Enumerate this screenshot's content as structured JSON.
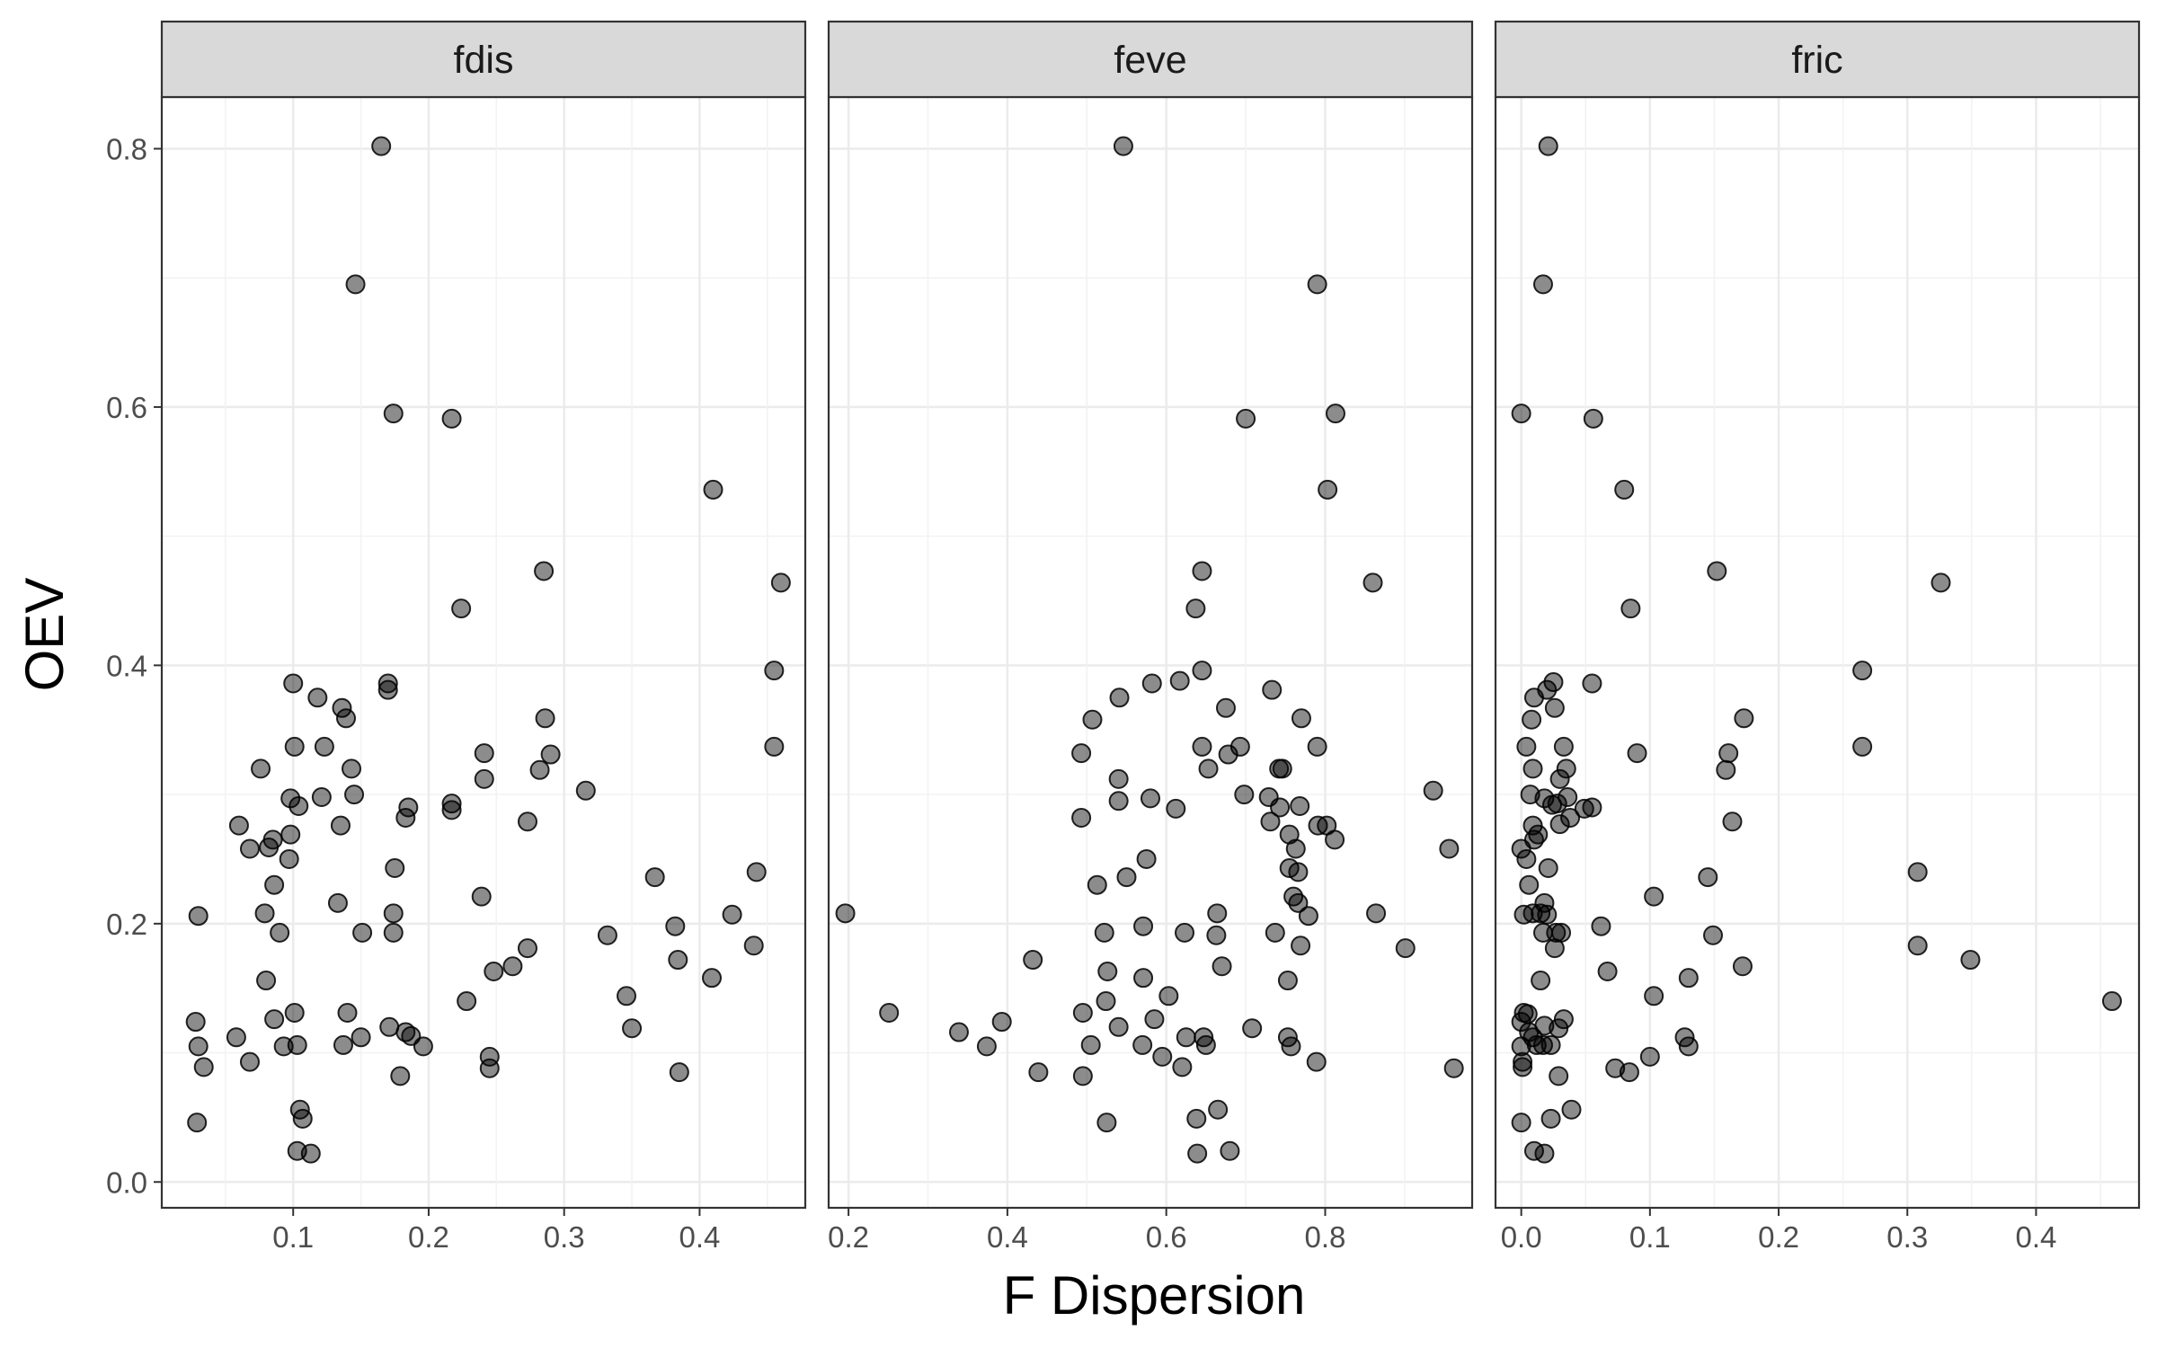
{
  "chart_data": {
    "type": "scatter",
    "xlabel": "F Dispersion",
    "ylabel": "OEV",
    "ylim": [
      -0.02,
      0.84
    ],
    "y_ticks": [
      0.0,
      0.2,
      0.4,
      0.6,
      0.8
    ],
    "y_tick_labels": [
      "0.0",
      "0.2",
      "0.4",
      "0.6",
      "0.8"
    ],
    "point_color": "#000000",
    "point_opacity": 0.45,
    "strip_fill": "#d9d9d9",
    "grid": true,
    "facets": [
      {
        "label": "fdis",
        "xlim": [
          0.003,
          0.478
        ],
        "x_ticks": [
          0.1,
          0.2,
          0.3,
          0.4
        ],
        "x_tick_labels": [
          "0.1",
          "0.2",
          "0.3",
          "0.4"
        ],
        "points": [
          [
            0.165,
            0.802
          ],
          [
            0.146,
            0.695
          ],
          [
            0.174,
            0.595
          ],
          [
            0.217,
            0.591
          ],
          [
            0.41,
            0.536
          ],
          [
            0.285,
            0.473
          ],
          [
            0.46,
            0.464
          ],
          [
            0.224,
            0.444
          ],
          [
            0.455,
            0.396
          ],
          [
            0.1,
            0.386
          ],
          [
            0.17,
            0.386
          ],
          [
            0.17,
            0.381
          ],
          [
            0.118,
            0.375
          ],
          [
            0.136,
            0.367
          ],
          [
            0.139,
            0.359
          ],
          [
            0.286,
            0.359
          ],
          [
            0.101,
            0.337
          ],
          [
            0.123,
            0.337
          ],
          [
            0.455,
            0.337
          ],
          [
            0.241,
            0.332
          ],
          [
            0.29,
            0.331
          ],
          [
            0.143,
            0.32
          ],
          [
            0.076,
            0.32
          ],
          [
            0.282,
            0.319
          ],
          [
            0.241,
            0.312
          ],
          [
            0.316,
            0.303
          ],
          [
            0.145,
            0.3
          ],
          [
            0.098,
            0.297
          ],
          [
            0.121,
            0.298
          ],
          [
            0.217,
            0.293
          ],
          [
            0.104,
            0.291
          ],
          [
            0.185,
            0.29
          ],
          [
            0.217,
            0.288
          ],
          [
            0.183,
            0.282
          ],
          [
            0.273,
            0.279
          ],
          [
            0.06,
            0.276
          ],
          [
            0.135,
            0.276
          ],
          [
            0.098,
            0.269
          ],
          [
            0.085,
            0.265
          ],
          [
            0.082,
            0.259
          ],
          [
            0.068,
            0.258
          ],
          [
            0.097,
            0.25
          ],
          [
            0.175,
            0.243
          ],
          [
            0.442,
            0.24
          ],
          [
            0.367,
            0.236
          ],
          [
            0.086,
            0.23
          ],
          [
            0.239,
            0.221
          ],
          [
            0.133,
            0.216
          ],
          [
            0.03,
            0.206
          ],
          [
            0.079,
            0.208
          ],
          [
            0.174,
            0.208
          ],
          [
            0.424,
            0.207
          ],
          [
            0.382,
            0.198
          ],
          [
            0.09,
            0.193
          ],
          [
            0.151,
            0.193
          ],
          [
            0.174,
            0.193
          ],
          [
            0.332,
            0.191
          ],
          [
            0.44,
            0.183
          ],
          [
            0.273,
            0.181
          ],
          [
            0.384,
            0.172
          ],
          [
            0.262,
            0.167
          ],
          [
            0.248,
            0.163
          ],
          [
            0.409,
            0.158
          ],
          [
            0.08,
            0.156
          ],
          [
            0.346,
            0.144
          ],
          [
            0.228,
            0.14
          ],
          [
            0.14,
            0.131
          ],
          [
            0.101,
            0.131
          ],
          [
            0.086,
            0.126
          ],
          [
            0.028,
            0.124
          ],
          [
            0.171,
            0.12
          ],
          [
            0.35,
            0.119
          ],
          [
            0.183,
            0.116
          ],
          [
            0.187,
            0.113
          ],
          [
            0.058,
            0.112
          ],
          [
            0.15,
            0.112
          ],
          [
            0.03,
            0.105
          ],
          [
            0.093,
            0.105
          ],
          [
            0.103,
            0.106
          ],
          [
            0.137,
            0.106
          ],
          [
            0.196,
            0.105
          ],
          [
            0.245,
            0.097
          ],
          [
            0.068,
            0.093
          ],
          [
            0.034,
            0.089
          ],
          [
            0.245,
            0.088
          ],
          [
            0.385,
            0.085
          ],
          [
            0.179,
            0.082
          ],
          [
            0.105,
            0.056
          ],
          [
            0.107,
            0.049
          ],
          [
            0.029,
            0.046
          ],
          [
            0.103,
            0.024
          ],
          [
            0.113,
            0.022
          ]
        ]
      },
      {
        "label": "feve",
        "xlim": [
          0.175,
          0.985
        ],
        "x_ticks": [
          0.2,
          0.4,
          0.6,
          0.8
        ],
        "x_tick_labels": [
          "0.2",
          "0.4",
          "0.6",
          "0.8"
        ],
        "points": [
          [
            0.546,
            0.802
          ],
          [
            0.79,
            0.695
          ],
          [
            0.813,
            0.595
          ],
          [
            0.7,
            0.591
          ],
          [
            0.803,
            0.536
          ],
          [
            0.645,
            0.473
          ],
          [
            0.86,
            0.464
          ],
          [
            0.637,
            0.444
          ],
          [
            0.645,
            0.396
          ],
          [
            0.617,
            0.388
          ],
          [
            0.582,
            0.386
          ],
          [
            0.733,
            0.381
          ],
          [
            0.541,
            0.375
          ],
          [
            0.675,
            0.367
          ],
          [
            0.77,
            0.359
          ],
          [
            0.507,
            0.358
          ],
          [
            0.493,
            0.332
          ],
          [
            0.645,
            0.337
          ],
          [
            0.693,
            0.337
          ],
          [
            0.79,
            0.337
          ],
          [
            0.678,
            0.331
          ],
          [
            0.742,
            0.32
          ],
          [
            0.746,
            0.32
          ],
          [
            0.653,
            0.32
          ],
          [
            0.54,
            0.312
          ],
          [
            0.936,
            0.303
          ],
          [
            0.698,
            0.3
          ],
          [
            0.729,
            0.298
          ],
          [
            0.58,
            0.297
          ],
          [
            0.54,
            0.295
          ],
          [
            0.743,
            0.29
          ],
          [
            0.768,
            0.291
          ],
          [
            0.612,
            0.289
          ],
          [
            0.493,
            0.282
          ],
          [
            0.731,
            0.279
          ],
          [
            0.791,
            0.276
          ],
          [
            0.802,
            0.276
          ],
          [
            0.755,
            0.269
          ],
          [
            0.812,
            0.265
          ],
          [
            0.763,
            0.258
          ],
          [
            0.956,
            0.258
          ],
          [
            0.575,
            0.25
          ],
          [
            0.755,
            0.243
          ],
          [
            0.766,
            0.24
          ],
          [
            0.55,
            0.236
          ],
          [
            0.513,
            0.23
          ],
          [
            0.76,
            0.221
          ],
          [
            0.766,
            0.216
          ],
          [
            0.196,
            0.208
          ],
          [
            0.664,
            0.208
          ],
          [
            0.864,
            0.208
          ],
          [
            0.779,
            0.206
          ],
          [
            0.571,
            0.198
          ],
          [
            0.522,
            0.193
          ],
          [
            0.623,
            0.193
          ],
          [
            0.737,
            0.193
          ],
          [
            0.663,
            0.191
          ],
          [
            0.769,
            0.183
          ],
          [
            0.901,
            0.181
          ],
          [
            0.432,
            0.172
          ],
          [
            0.67,
            0.167
          ],
          [
            0.526,
            0.163
          ],
          [
            0.571,
            0.158
          ],
          [
            0.753,
            0.156
          ],
          [
            0.603,
            0.144
          ],
          [
            0.524,
            0.14
          ],
          [
            0.251,
            0.131
          ],
          [
            0.495,
            0.131
          ],
          [
            0.585,
            0.126
          ],
          [
            0.393,
            0.124
          ],
          [
            0.54,
            0.12
          ],
          [
            0.708,
            0.119
          ],
          [
            0.339,
            0.116
          ],
          [
            0.625,
            0.112
          ],
          [
            0.647,
            0.112
          ],
          [
            0.753,
            0.112
          ],
          [
            0.374,
            0.105
          ],
          [
            0.505,
            0.106
          ],
          [
            0.57,
            0.106
          ],
          [
            0.65,
            0.106
          ],
          [
            0.757,
            0.105
          ],
          [
            0.595,
            0.097
          ],
          [
            0.789,
            0.093
          ],
          [
            0.62,
            0.089
          ],
          [
            0.962,
            0.088
          ],
          [
            0.439,
            0.085
          ],
          [
            0.495,
            0.082
          ],
          [
            0.665,
            0.056
          ],
          [
            0.638,
            0.049
          ],
          [
            0.525,
            0.046
          ],
          [
            0.68,
            0.024
          ],
          [
            0.639,
            0.022
          ]
        ]
      },
      {
        "label": "fric",
        "xlim": [
          -0.02,
          0.48
        ],
        "x_ticks": [
          0.0,
          0.1,
          0.2,
          0.3,
          0.4
        ],
        "x_tick_labels": [
          "0.0",
          "0.1",
          "0.2",
          "0.3",
          "0.4"
        ],
        "points": [
          [
            0.021,
            0.802
          ],
          [
            0.017,
            0.695
          ],
          [
            0.0,
            0.595
          ],
          [
            0.056,
            0.591
          ],
          [
            0.08,
            0.536
          ],
          [
            0.152,
            0.473
          ],
          [
            0.326,
            0.464
          ],
          [
            0.085,
            0.444
          ],
          [
            0.265,
            0.396
          ],
          [
            0.025,
            0.387
          ],
          [
            0.055,
            0.386
          ],
          [
            0.02,
            0.381
          ],
          [
            0.01,
            0.375
          ],
          [
            0.026,
            0.367
          ],
          [
            0.173,
            0.359
          ],
          [
            0.008,
            0.358
          ],
          [
            0.004,
            0.337
          ],
          [
            0.033,
            0.337
          ],
          [
            0.265,
            0.337
          ],
          [
            0.09,
            0.332
          ],
          [
            0.161,
            0.332
          ],
          [
            0.035,
            0.32
          ],
          [
            0.009,
            0.32
          ],
          [
            0.159,
            0.319
          ],
          [
            0.03,
            0.312
          ],
          [
            0.007,
            0.3
          ],
          [
            0.036,
            0.298
          ],
          [
            0.018,
            0.297
          ],
          [
            0.028,
            0.293
          ],
          [
            0.024,
            0.292
          ],
          [
            0.055,
            0.29
          ],
          [
            0.049,
            0.289
          ],
          [
            0.038,
            0.282
          ],
          [
            0.164,
            0.279
          ],
          [
            0.03,
            0.277
          ],
          [
            0.009,
            0.276
          ],
          [
            0.013,
            0.269
          ],
          [
            0.01,
            0.265
          ],
          [
            0.0,
            0.258
          ],
          [
            0.004,
            0.25
          ],
          [
            0.021,
            0.243
          ],
          [
            0.308,
            0.24
          ],
          [
            0.145,
            0.236
          ],
          [
            0.006,
            0.23
          ],
          [
            0.103,
            0.221
          ],
          [
            0.018,
            0.216
          ],
          [
            0.002,
            0.207
          ],
          [
            0.009,
            0.208
          ],
          [
            0.015,
            0.208
          ],
          [
            0.02,
            0.207
          ],
          [
            0.062,
            0.198
          ],
          [
            0.017,
            0.193
          ],
          [
            0.027,
            0.193
          ],
          [
            0.031,
            0.193
          ],
          [
            0.149,
            0.191
          ],
          [
            0.308,
            0.183
          ],
          [
            0.026,
            0.181
          ],
          [
            0.349,
            0.172
          ],
          [
            0.172,
            0.167
          ],
          [
            0.067,
            0.163
          ],
          [
            0.13,
            0.158
          ],
          [
            0.015,
            0.156
          ],
          [
            0.103,
            0.144
          ],
          [
            0.459,
            0.14
          ],
          [
            0.002,
            0.131
          ],
          [
            0.005,
            0.13
          ],
          [
            0.033,
            0.126
          ],
          [
            0.0,
            0.124
          ],
          [
            0.018,
            0.121
          ],
          [
            0.029,
            0.119
          ],
          [
            0.006,
            0.116
          ],
          [
            0.009,
            0.112
          ],
          [
            0.127,
            0.112
          ],
          [
            0.0,
            0.105
          ],
          [
            0.012,
            0.106
          ],
          [
            0.017,
            0.106
          ],
          [
            0.023,
            0.106
          ],
          [
            0.13,
            0.105
          ],
          [
            0.1,
            0.097
          ],
          [
            0.001,
            0.093
          ],
          [
            0.001,
            0.089
          ],
          [
            0.073,
            0.088
          ],
          [
            0.084,
            0.085
          ],
          [
            0.029,
            0.082
          ],
          [
            0.039,
            0.056
          ],
          [
            0.023,
            0.049
          ],
          [
            0.0,
            0.046
          ],
          [
            0.01,
            0.024
          ],
          [
            0.018,
            0.022
          ]
        ]
      }
    ]
  }
}
